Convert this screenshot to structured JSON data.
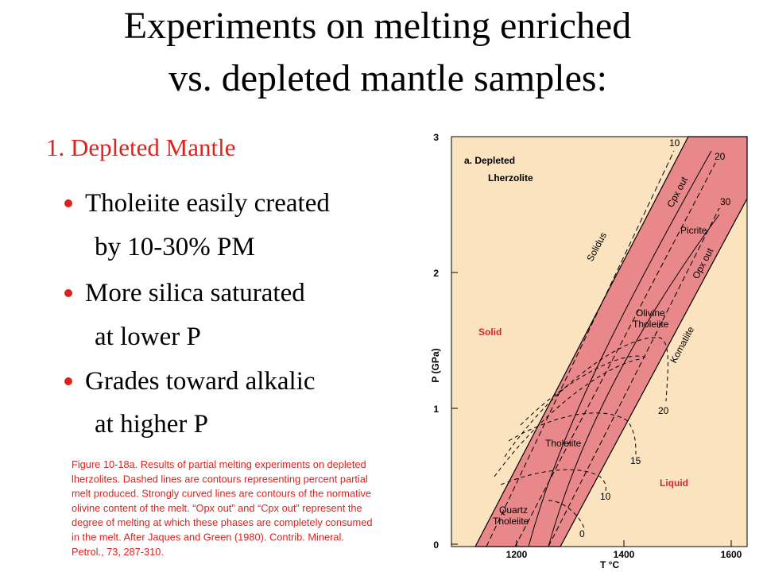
{
  "title": {
    "line1": "Experiments on melting enriched",
    "line2": "vs. depleted mantle samples:"
  },
  "subtitle": "1.  Depleted Mantle",
  "bullets": [
    {
      "line1": "Tholeiite easily created",
      "line2": "by 10-30% PM"
    },
    {
      "line1": "More silica saturated",
      "line2": "at lower P"
    },
    {
      "line1": "Grades toward alkalic",
      "line2": "at higher P"
    }
  ],
  "caption": [
    "Figure 10-18a. Results of partial melting experiments on depleted",
    "lherzolites. Dashed lines are contours representing percent partial",
    "melt produced. Strongly curved lines are contours of the normative",
    "olivine content of the melt. “Opx out” and “Cpx out” represent the",
    "degree of melting at which these phases are completely consumed",
    "in the melt. After Jaques and Green (1980). Contrib. Mineral.",
    "Petrol., 73, 287-310."
  ],
  "figure": {
    "panel_label": "a.  Depleted",
    "panel_sublabel": "Lherzolite",
    "solid_label": "Solid",
    "liquid_label": "Liquid",
    "solidus_label": "Solidus",
    "cpx_label": "Cpx out",
    "opx_label": "Opx out",
    "picrite_label": "Picrite",
    "olivine_label": [
      "Olivine",
      "Tholeiite"
    ],
    "komatiite_label": "Komatiite",
    "tholeiite_label": "Tholeiite",
    "quartz_label": [
      "Quartz",
      "Tholeiite"
    ],
    "melt_contours": [
      "10",
      "20",
      "30"
    ],
    "olivine_contours": [
      "20",
      "15",
      "10",
      "0"
    ],
    "y_axis_label": "P (GPa)",
    "x_axis_label": "T °C",
    "yticks": [
      0,
      1,
      2,
      3
    ],
    "xticks": [
      1200,
      1400,
      1600
    ]
  }
}
